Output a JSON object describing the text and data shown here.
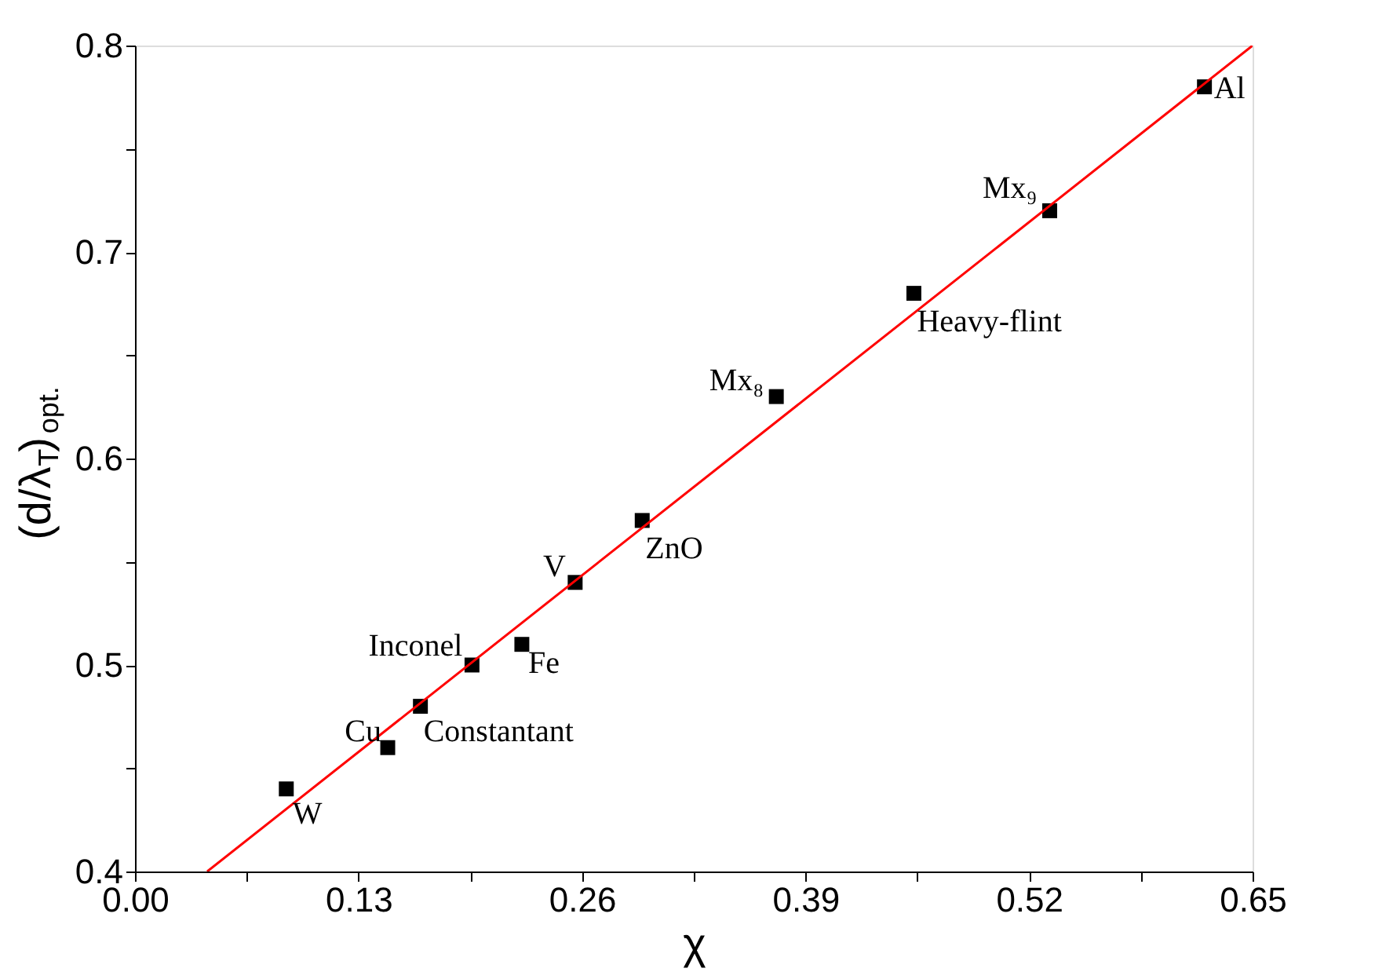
{
  "chart_data": {
    "type": "scatter",
    "xlabel": "χ",
    "ylabel": "(d/λ$_{T}$)$_{opt.}$",
    "xlim": [
      0,
      0.65
    ],
    "ylim": [
      0.4,
      0.8
    ],
    "xticks": [
      {
        "value": 0,
        "label": "0.00"
      },
      {
        "value": 0.065,
        "label": null
      },
      0.13,
      {
        "value": 0.195,
        "label": null
      },
      0.26,
      {
        "value": 0.325,
        "label": null
      },
      0.39,
      {
        "value": 0.455,
        "label": null
      },
      0.52,
      {
        "value": 0.585,
        "label": null
      },
      0.65
    ],
    "yticks": [
      {
        "value": 0.4,
        "label": "0.4"
      },
      {
        "value": 0.45,
        "label": null
      },
      {
        "value": 0.5,
        "label": "0.5"
      },
      {
        "value": 0.55,
        "label": null
      },
      {
        "value": 0.6,
        "label": "0.6"
      },
      {
        "value": 0.65,
        "label": null
      },
      {
        "value": 0.7,
        "label": "0.7"
      },
      {
        "value": 0.75,
        "label": null
      },
      {
        "value": 0.8,
        "label": "0.8"
      }
    ],
    "grid": false,
    "marker": "square",
    "series": [
      {
        "color": "#000000",
        "x": [
          0.088,
          0.147,
          0.166,
          0.196,
          0.225,
          0.256,
          0.295,
          0.373,
          0.453,
          0.532,
          0.622
        ],
        "values": [
          0.44,
          0.46,
          0.48,
          0.5,
          0.51,
          0.54,
          0.57,
          0.63,
          0.68,
          0.72,
          0.78
        ]
      },
      {
        "type": "line",
        "color": "#ff0000",
        "line_style": "solid",
        "marker": "none",
        "x": [
          0.042,
          0.65
        ],
        "values": [
          0.4,
          0.8
        ]
      }
    ],
    "annotations": [
      {
        "text": "W",
        "x": 0.088,
        "y": 0.44
      },
      {
        "text": "Cu",
        "x": 0.147,
        "y": 0.46
      },
      {
        "text": "Constantant",
        "x": 0.166,
        "y": 0.48
      },
      {
        "text": "Inconel",
        "x": 0.196,
        "y": 0.5
      },
      {
        "text": "Fe",
        "x": 0.225,
        "y": 0.51
      },
      {
        "text": "V",
        "x": 0.256,
        "y": 0.54
      },
      {
        "text": "ZnO",
        "x": 0.295,
        "y": 0.57
      },
      {
        "text": "Mx₈",
        "x": 0.373,
        "y": 0.63
      },
      {
        "text": "Heavy-flint",
        "x": 0.453,
        "y": 0.68
      },
      {
        "text": "Mx₉",
        "x": 0.532,
        "y": 0.72
      },
      {
        "text": "Al",
        "x": 0.622,
        "y": 0.78
      }
    ]
  }
}
